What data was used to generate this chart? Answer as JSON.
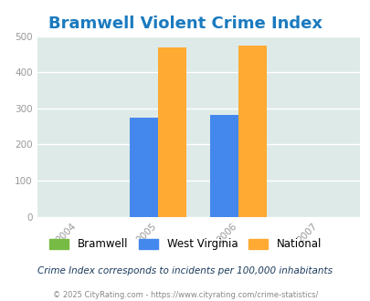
{
  "title": "Bramwell Violent Crime Index",
  "title_color": "#1a7abf",
  "title_fontsize": 13,
  "bar_width": 0.35,
  "groups": {
    "2005": {
      "bramwell": 0,
      "west_virginia": 275,
      "national": 469
    },
    "2006": {
      "bramwell": 0,
      "west_virginia": 281,
      "national": 474
    }
  },
  "colors": {
    "bramwell": "#77bb44",
    "west_virginia": "#4488ee",
    "national": "#ffaa33"
  },
  "legend_labels": [
    "Bramwell",
    "West Virginia",
    "National"
  ],
  "xlim": [
    2003.5,
    2007.5
  ],
  "ylim": [
    0,
    500
  ],
  "yticks": [
    0,
    100,
    200,
    300,
    400,
    500
  ],
  "xticks": [
    2004,
    2005,
    2006,
    2007
  ],
  "plot_bg_color": "#ddeae8",
  "footer_text": "Crime Index corresponds to incidents per 100,000 inhabitants",
  "copyright_text": "© 2025 CityRating.com - https://www.cityrating.com/crime-statistics/",
  "footer_color": "#1a3a5c",
  "copyright_color": "#888888",
  "grid_color": "#c8ddd8"
}
